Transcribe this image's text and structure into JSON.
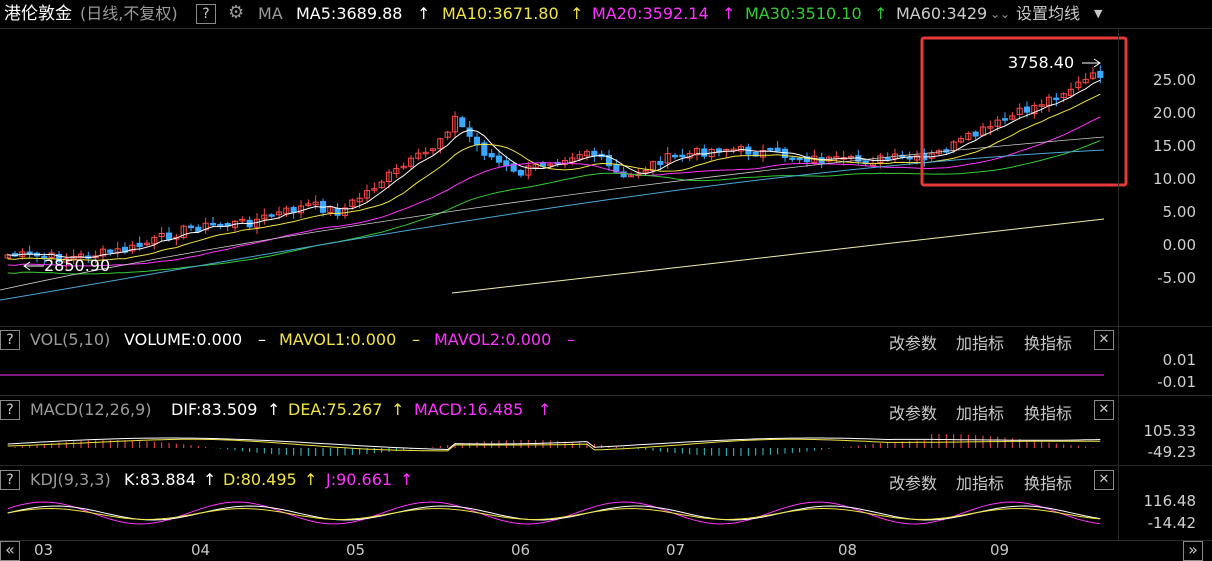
{
  "header": {
    "title": "港伦敦金",
    "subtitle": "(日线,不复权)",
    "help": "?",
    "ma_label": "MA",
    "ma5": "MA5:3689.88",
    "ma10": "MA10:3671.80",
    "ma20": "MA20:3592.14",
    "ma30": "MA30:3510.10",
    "ma60": "MA60:3429",
    "up_arrow": "↑",
    "settings": "设置均线",
    "colors": {
      "ma5": "#ffffff",
      "ma10": "#f0e442",
      "ma20": "#ff33ff",
      "ma30": "#33cc33",
      "ma60": "#cccccc"
    }
  },
  "main_chart": {
    "high_label": "3758.40",
    "low_label": "2850.90",
    "y_ticks": [
      "25.00",
      "20.00",
      "15.00",
      "10.00",
      "5.00",
      "0.00",
      "-5.00"
    ]
  },
  "vol_panel": {
    "help": "?",
    "name": "VOL(5,10)",
    "volume": "VOLUME:0.000",
    "mavol1": "MAVOL1:0.000",
    "mavol2": "MAVOL2:0.000",
    "dash": "–",
    "y_ticks": [
      "0.01",
      "-0.01"
    ]
  },
  "macd_panel": {
    "help": "?",
    "name": "MACD(12,26,9)",
    "dif": "DIF:83.509",
    "dea": "DEA:75.267",
    "macd": "MACD:16.485",
    "y_ticks": [
      "105.33",
      "-49.23"
    ]
  },
  "kdj_panel": {
    "help": "?",
    "name": "KDJ(9,3,3)",
    "k": "K:83.884",
    "d": "D:80.495",
    "j": "J:90.661",
    "y_ticks": [
      "116.48",
      "-14.42"
    ]
  },
  "panel_menu": {
    "params": "改参数",
    "add": "加指标",
    "swap": "换指标",
    "close": "✕"
  },
  "x_axis": {
    "months": [
      "03",
      "04",
      "05",
      "06",
      "07",
      "08",
      "09"
    ],
    "scroll_left": "«",
    "scroll_right": "»"
  },
  "highlight_color": "#e63a3a"
}
